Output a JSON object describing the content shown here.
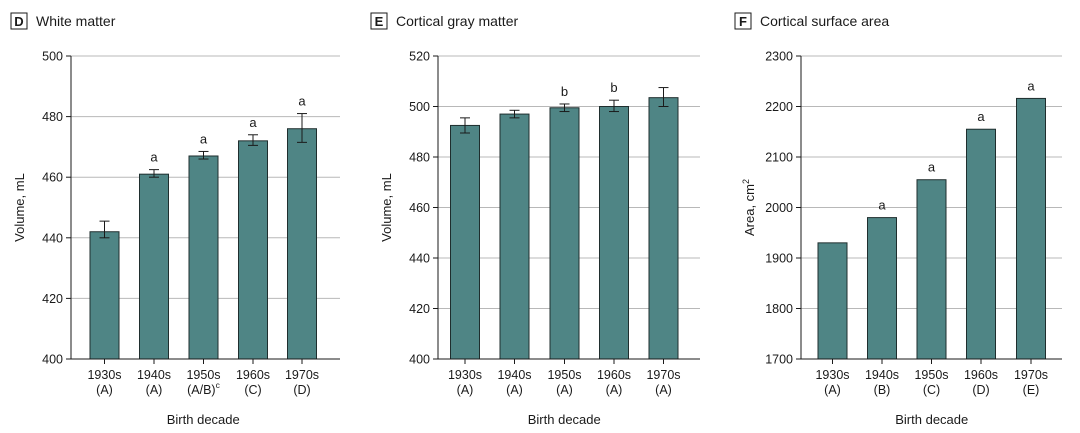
{
  "chart_data": [
    {
      "type": "bar",
      "panel_letter": "D",
      "title": "White matter",
      "xlabel": "Birth decade",
      "ylabel": "Volume, mL",
      "ylabel_superscript": "",
      "ylim": [
        400,
        500
      ],
      "yticks": [
        400,
        420,
        440,
        460,
        480,
        500
      ],
      "grid": true,
      "categories": [
        "1930s",
        "1940s",
        "1950s",
        "1960s",
        "1970s"
      ],
      "category_groups": [
        "(A)",
        "(A)",
        "(A/B)",
        "(C)",
        "(D)"
      ],
      "category_group_superscripts": [
        "",
        "",
        "c",
        "",
        ""
      ],
      "values": [
        442,
        461,
        467,
        472,
        476
      ],
      "error_low": [
        440,
        460,
        466,
        470.5,
        471.5
      ],
      "error_high": [
        445.5,
        462.5,
        468.5,
        474,
        481
      ],
      "annotations": [
        "",
        "a",
        "a",
        "a",
        "a"
      ],
      "bar_color": "#4f8585"
    },
    {
      "type": "bar",
      "panel_letter": "E",
      "title": "Cortical gray matter",
      "xlabel": "Birth decade",
      "ylabel": "Volume, mL",
      "ylabel_superscript": "",
      "ylim": [
        400,
        520
      ],
      "yticks": [
        400,
        420,
        440,
        460,
        480,
        500,
        520
      ],
      "grid": true,
      "categories": [
        "1930s",
        "1940s",
        "1950s",
        "1960s",
        "1970s"
      ],
      "category_groups": [
        "(A)",
        "(A)",
        "(A)",
        "(A)",
        "(A)"
      ],
      "category_group_superscripts": [
        "",
        "",
        "",
        "",
        ""
      ],
      "values": [
        492.5,
        497,
        499.5,
        500,
        503.5
      ],
      "error_low": [
        489.5,
        495.5,
        498,
        498,
        500
      ],
      "error_high": [
        495.5,
        498.5,
        501,
        502.5,
        507.5
      ],
      "annotations": [
        "",
        "",
        "b",
        "b",
        ""
      ],
      "bar_color": "#4f8585"
    },
    {
      "type": "bar",
      "panel_letter": "F",
      "title": "Cortical surface area",
      "xlabel": "Birth decade",
      "ylabel": "Area, cm",
      "ylabel_superscript": "2",
      "ylim": [
        1700,
        2300
      ],
      "yticks": [
        1700,
        1800,
        1900,
        2000,
        2100,
        2200,
        2300
      ],
      "grid": true,
      "categories": [
        "1930s",
        "1940s",
        "1950s",
        "1960s",
        "1970s"
      ],
      "category_groups": [
        "(A)",
        "(B)",
        "(C)",
        "(D)",
        "(E)"
      ],
      "category_group_superscripts": [
        "",
        "",
        "",
        "",
        ""
      ],
      "values": [
        1930,
        1980,
        2055,
        2155,
        2216
      ],
      "error_low": null,
      "error_high": null,
      "annotations": [
        "",
        "a",
        "a",
        "a",
        "a"
      ],
      "bar_color": "#4f8585"
    }
  ]
}
